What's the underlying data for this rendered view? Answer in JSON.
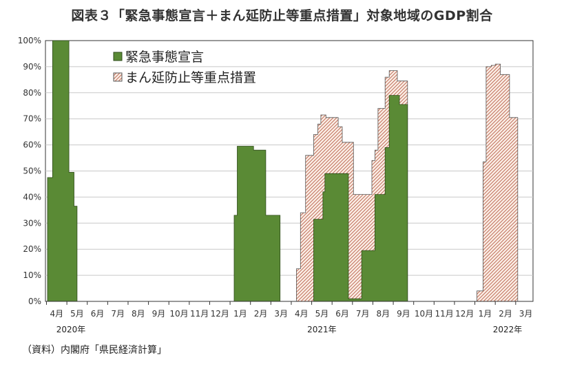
{
  "title": "図表３「緊急事態宣言＋まん延防止等重点措置」対象地域のGDP割合",
  "source": "（資料）内閣府「県民経済計算」",
  "colors": {
    "emergency_fill": "#5a8a35",
    "emergency_stroke": "#2e4a1a",
    "priority_hatch": "#c0705a",
    "priority_bg": "#fbeee6",
    "priority_stroke": "#555555",
    "grid": "#c8c8c8",
    "axis": "#333333"
  },
  "chart_data": {
    "type": "area",
    "title": "図表３「緊急事態宣言＋まん延防止等重点措置」対象地域のGDP割合",
    "xlabel": "",
    "ylabel": "",
    "x_unit": "month index (0 = 2020年4月, 23 = 2022年3月)",
    "ylim": [
      0,
      100
    ],
    "yticks": [
      "0%",
      "10%",
      "20%",
      "30%",
      "40%",
      "50%",
      "60%",
      "70%",
      "80%",
      "90%",
      "100%"
    ],
    "xtick_labels": [
      "4月",
      "5月",
      "6月",
      "7月",
      "8月",
      "9月",
      "10月",
      "11月",
      "12月",
      "1月",
      "2月",
      "3月",
      "4月",
      "5月",
      "6月",
      "7月",
      "8月",
      "9月",
      "10月",
      "11月",
      "12月",
      "1月",
      "2月",
      "3月"
    ],
    "year_labels": [
      {
        "label": "2020年",
        "month_index": 0.7
      },
      {
        "label": "2021年",
        "month_index": 13.0
      },
      {
        "label": "2022年",
        "month_index": 22.1
      }
    ],
    "xlim": [
      -0.55,
      23.35
    ],
    "legend": {
      "position": "top-left",
      "entries": [
        "緊急事態宣言",
        "まん延防止等重点措置"
      ]
    },
    "grid": "horizontal",
    "series": [
      {
        "name": "まん延防止等重点措置",
        "style": "hatched",
        "points": [
          [
            11.75,
            0
          ],
          [
            11.75,
            12.5
          ],
          [
            11.95,
            12.5
          ],
          [
            11.95,
            34
          ],
          [
            12.2,
            34
          ],
          [
            12.2,
            56
          ],
          [
            12.6,
            56
          ],
          [
            12.6,
            64
          ],
          [
            12.8,
            64
          ],
          [
            12.8,
            68
          ],
          [
            12.95,
            68
          ],
          [
            12.95,
            71.5
          ],
          [
            13.2,
            71.5
          ],
          [
            13.2,
            70.5
          ],
          [
            13.8,
            70.5
          ],
          [
            13.8,
            67
          ],
          [
            14.0,
            67
          ],
          [
            14.0,
            61
          ],
          [
            14.55,
            61
          ],
          [
            14.55,
            41
          ],
          [
            15.3,
            41
          ],
          [
            15.3,
            41
          ],
          [
            15.45,
            41
          ],
          [
            15.45,
            54
          ],
          [
            15.6,
            54
          ],
          [
            15.6,
            58
          ],
          [
            15.75,
            58
          ],
          [
            15.75,
            74
          ],
          [
            16.1,
            74
          ],
          [
            16.1,
            86
          ],
          [
            16.3,
            86
          ],
          [
            16.3,
            88.5
          ],
          [
            16.7,
            88.5
          ],
          [
            16.7,
            84.5
          ],
          [
            17.2,
            84.5
          ],
          [
            17.2,
            0
          ],
          [
            20.6,
            0
          ],
          [
            20.6,
            4
          ],
          [
            20.9,
            4
          ],
          [
            20.9,
            53.5
          ],
          [
            21.05,
            53.5
          ],
          [
            21.05,
            90
          ],
          [
            21.3,
            90
          ],
          [
            21.3,
            90.5
          ],
          [
            21.5,
            90.5
          ],
          [
            21.5,
            91
          ],
          [
            21.75,
            91
          ],
          [
            21.75,
            87
          ],
          [
            22.2,
            87
          ],
          [
            22.2,
            70.5
          ],
          [
            22.6,
            70.5
          ],
          [
            22.6,
            0
          ]
        ]
      },
      {
        "name": "緊急事態宣言",
        "style": "solid",
        "points": [
          [
            -0.45,
            0
          ],
          [
            -0.45,
            47.5
          ],
          [
            -0.2,
            47.5
          ],
          [
            -0.2,
            100
          ],
          [
            0.6,
            100
          ],
          [
            0.6,
            49.5
          ],
          [
            0.85,
            49.5
          ],
          [
            0.85,
            36.5
          ],
          [
            1.0,
            36.5
          ],
          [
            1.0,
            0
          ],
          [
            8.7,
            0
          ],
          [
            8.7,
            33
          ],
          [
            8.85,
            33
          ],
          [
            8.85,
            59.5
          ],
          [
            9.65,
            59.5
          ],
          [
            9.65,
            58
          ],
          [
            10.25,
            58
          ],
          [
            10.25,
            33
          ],
          [
            10.95,
            33
          ],
          [
            10.95,
            0
          ],
          [
            12.6,
            0
          ],
          [
            12.6,
            31.5
          ],
          [
            13.05,
            31.5
          ],
          [
            13.05,
            42
          ],
          [
            13.15,
            42
          ],
          [
            13.15,
            49
          ],
          [
            14.3,
            49
          ],
          [
            14.3,
            1
          ],
          [
            14.95,
            1
          ],
          [
            14.95,
            19.5
          ],
          [
            15.6,
            19.5
          ],
          [
            15.6,
            41
          ],
          [
            16.1,
            41
          ],
          [
            16.1,
            59
          ],
          [
            16.3,
            59
          ],
          [
            16.3,
            79
          ],
          [
            16.8,
            79
          ],
          [
            16.8,
            75.5
          ],
          [
            17.2,
            75.5
          ],
          [
            17.2,
            0
          ]
        ]
      }
    ]
  }
}
